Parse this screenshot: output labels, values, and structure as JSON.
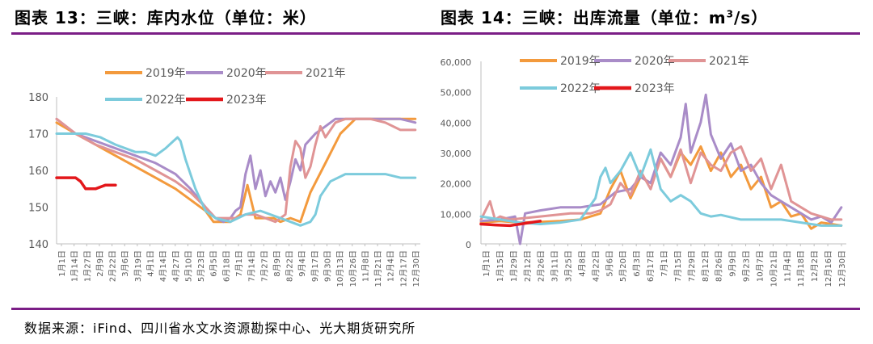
{
  "left_title": "图表 13：三峡：库内水位（单位：米）",
  "right_title_prefix": "图表 14：三峡：出库流量（单位：m",
  "right_title_sup": "3",
  "right_title_suffix": "/s）",
  "source": "数据来源：iFind、四川省水文水资源勘探中心、光大期货研究所",
  "colors": {
    "2019年": "#f39a3d",
    "2020年": "#a98cc8",
    "2021年": "#e09495",
    "2022年": "#7ccbdc",
    "2023年": "#e3171b",
    "rule": "#7b1e86"
  },
  "chart_data": [
    {
      "type": "line",
      "title": "图表 13：三峡：库内水位（单位：米）",
      "ylim": [
        140,
        180
      ],
      "yticks": [
        "140",
        "150",
        "160",
        "170",
        "180"
      ],
      "xlim": [
        1,
        365
      ],
      "xtick_labels": [
        "1月1日",
        "1月14日",
        "1月27日",
        "2月9日",
        "2月22日",
        "3月6日",
        "3月19日",
        "4月1日",
        "4月14日",
        "4月27日",
        "5月10日",
        "5月23日",
        "6月5日",
        "6月18日",
        "7月1日",
        "7月14日",
        "7月27日",
        "8月9日",
        "8月22日",
        "9月4日",
        "9月17日",
        "9月30日",
        "10月13日",
        "10月26日",
        "11月8日",
        "11月21日",
        "12月4日",
        "12月17日",
        "12月30日"
      ],
      "legend": [
        "2019年",
        "2020年",
        "2021年",
        "2022年",
        "2023年"
      ],
      "series": [
        {
          "name": "2019年",
          "x": [
            1,
            20,
            40,
            60,
            80,
            100,
            120,
            135,
            150,
            158,
            165,
            175,
            185,
            192,
            200,
            210,
            218,
            225,
            235,
            245,
            255,
            270,
            285,
            300,
            315,
            330,
            345,
            360
          ],
          "y": [
            173,
            170,
            167,
            164,
            161,
            158,
            155,
            152,
            149,
            146,
            146,
            146,
            148,
            156,
            147,
            147,
            147,
            146,
            147,
            146,
            154,
            162,
            170,
            174,
            174,
            174,
            174,
            174
          ]
        },
        {
          "name": "2020年",
          "x": [
            1,
            20,
            40,
            60,
            80,
            100,
            120,
            135,
            150,
            160,
            168,
            175,
            180,
            185,
            190,
            195,
            200,
            205,
            210,
            215,
            220,
            225,
            230,
            235,
            240,
            245,
            250,
            260,
            270,
            280,
            290,
            300,
            315,
            330,
            345,
            360
          ],
          "y": [
            174,
            170,
            168,
            166,
            164,
            162,
            159,
            155,
            150,
            147,
            146,
            147,
            149,
            150,
            159,
            164,
            155,
            160,
            153,
            157,
            154,
            158,
            152,
            157,
            163,
            160,
            167,
            170,
            172,
            174,
            174,
            174,
            174,
            174,
            174,
            173
          ]
        },
        {
          "name": "2021年",
          "x": [
            1,
            20,
            40,
            60,
            80,
            100,
            120,
            135,
            150,
            160,
            170,
            180,
            190,
            200,
            210,
            220,
            230,
            235,
            240,
            245,
            250,
            255,
            260,
            265,
            270,
            280,
            290,
            300,
            315,
            330,
            345,
            360
          ],
          "y": [
            174,
            170,
            167,
            165,
            163,
            160,
            157,
            154,
            150,
            147,
            147,
            147,
            148,
            148,
            147,
            146,
            148,
            161,
            168,
            166,
            158,
            161,
            167,
            172,
            169,
            173,
            174,
            174,
            174,
            173,
            171,
            171
          ]
        },
        {
          "name": "2022年",
          "x": [
            1,
            15,
            30,
            45,
            60,
            80,
            90,
            100,
            110,
            118,
            122,
            125,
            130,
            140,
            150,
            160,
            175,
            190,
            205,
            215,
            225,
            235,
            245,
            255,
            260,
            265,
            275,
            290,
            310,
            330,
            345,
            360
          ],
          "y": [
            170,
            170,
            170,
            169,
            167,
            165,
            165,
            164,
            166,
            168,
            169,
            168,
            163,
            155,
            149,
            147,
            146,
            148,
            149,
            148,
            147,
            146,
            145,
            146,
            148,
            153,
            157,
            159,
            159,
            159,
            158,
            158
          ]
        },
        {
          "name": "2023年",
          "x": [
            1,
            10,
            20,
            25,
            30,
            40,
            50,
            60
          ],
          "y": [
            158,
            158,
            158,
            157,
            155,
            155,
            156,
            156
          ]
        }
      ]
    },
    {
      "type": "line",
      "title": "图表 14：三峡：出库流量（单位：m3/s）",
      "ylim": [
        0,
        60000
      ],
      "yticks": [
        "0",
        "10,000",
        "20,000",
        "30,000",
        "40,000",
        "50,000",
        "60,000"
      ],
      "xlim": [
        1,
        365
      ],
      "xtick_labels": [
        "1月1日",
        "1月15日",
        "1月29日",
        "2月12日",
        "2月26日",
        "3月11日",
        "3月25日",
        "4月8日",
        "4月22日",
        "5月6日",
        "5月20日",
        "6月3日",
        "6月17日",
        "7月1日",
        "7月15日",
        "7月29日",
        "8月12日",
        "8月26日",
        "9月9日",
        "9月23日",
        "10月7日",
        "10月21日",
        "11月4日",
        "11月18日",
        "12月2日",
        "12月16日",
        "12月30日"
      ],
      "legend": [
        "2019年",
        "2020年",
        "2021年",
        "2022年",
        "2023年"
      ],
      "series": [
        {
          "name": "2019年",
          "x": [
            1,
            20,
            40,
            60,
            80,
            100,
            120,
            130,
            140,
            150,
            160,
            170,
            180,
            190,
            200,
            210,
            220,
            230,
            240,
            250,
            260,
            270,
            280,
            290,
            300,
            310,
            320,
            330,
            340,
            350,
            360
          ],
          "y": [
            7000,
            7500,
            7000,
            7200,
            7500,
            8000,
            10000,
            18000,
            24000,
            15000,
            22000,
            20000,
            28000,
            22000,
            30000,
            26000,
            32000,
            24000,
            30000,
            22000,
            26000,
            18000,
            22000,
            12000,
            14000,
            9000,
            10000,
            5000,
            7000,
            6500,
            6000
          ]
        },
        {
          "name": "2020年",
          "x": [
            1,
            20,
            35,
            40,
            45,
            60,
            80,
            100,
            120,
            135,
            150,
            160,
            170,
            180,
            190,
            200,
            205,
            210,
            220,
            225,
            230,
            240,
            250,
            260,
            270,
            280,
            290,
            300,
            310,
            320,
            330,
            340,
            350,
            360
          ],
          "y": [
            7500,
            8000,
            9000,
            0,
            10000,
            11000,
            12000,
            12000,
            13000,
            17000,
            18000,
            22000,
            20000,
            30000,
            26000,
            35000,
            46000,
            30000,
            40000,
            49000,
            36000,
            28000,
            33000,
            24000,
            26000,
            20000,
            16000,
            14000,
            12000,
            10000,
            8000,
            9000,
            7000,
            12000
          ]
        },
        {
          "name": "2021年",
          "x": [
            1,
            10,
            15,
            20,
            30,
            60,
            90,
            110,
            120,
            130,
            140,
            150,
            160,
            170,
            180,
            190,
            200,
            210,
            220,
            230,
            240,
            250,
            260,
            270,
            280,
            290,
            300,
            310,
            320,
            330,
            340,
            350,
            360
          ],
          "y": [
            8000,
            14000,
            8000,
            9000,
            8000,
            9000,
            10000,
            10000,
            11000,
            13000,
            20000,
            16000,
            24000,
            18000,
            28000,
            22000,
            31000,
            20000,
            30000,
            26000,
            24000,
            30000,
            32000,
            24000,
            28000,
            18000,
            26000,
            14000,
            12000,
            10000,
            9000,
            8000,
            8000
          ]
        },
        {
          "name": "2022年",
          "x": [
            1,
            20,
            40,
            60,
            80,
            100,
            115,
            120,
            125,
            130,
            140,
            150,
            160,
            170,
            180,
            190,
            200,
            210,
            220,
            230,
            240,
            260,
            280,
            300,
            320,
            340,
            360
          ],
          "y": [
            9000,
            8000,
            7000,
            6500,
            7000,
            8000,
            15000,
            22000,
            25000,
            20000,
            24000,
            30000,
            22000,
            31000,
            18000,
            14000,
            16000,
            14000,
            10000,
            9000,
            9500,
            8000,
            8000,
            8000,
            7000,
            6000,
            6000
          ]
        },
        {
          "name": "2023年",
          "x": [
            1,
            15,
            30,
            40,
            50,
            60
          ],
          "y": [
            6500,
            6200,
            6000,
            6500,
            7000,
            7500
          ]
        }
      ]
    }
  ]
}
